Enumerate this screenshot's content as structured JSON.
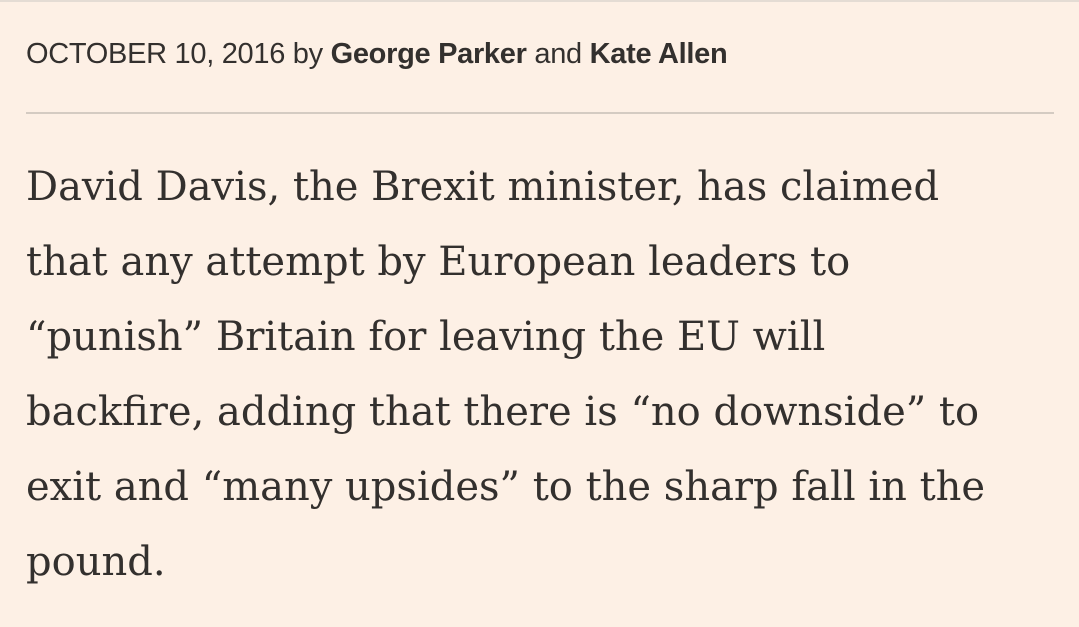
{
  "byline": {
    "date": "OCTOBER 10, 2016",
    "by": "by",
    "authors": [
      "George Parker",
      "Kate Allen"
    ],
    "and": "and"
  },
  "paragraph": {
    "lines": [
      "David Davis, the Brexit minister, has claimed",
      "that any attempt by European leaders to",
      "“punish” Britain for leaving the EU will",
      "backfire, adding that there is “no downside” to",
      "exit and “many upsides” to the sharp fall in the",
      "pound."
    ]
  }
}
